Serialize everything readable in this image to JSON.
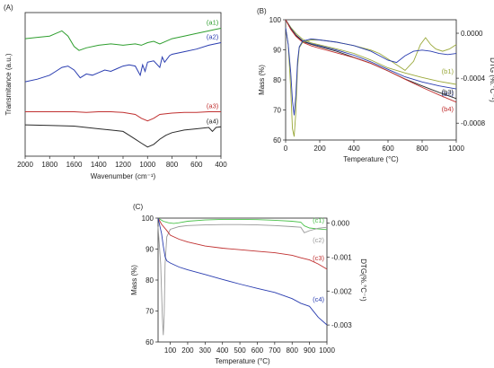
{
  "chart_data": [
    {
      "panel_label": "(A)",
      "type": "line",
      "xlabel": "Wavenumber (cm⁻¹)",
      "ylabel": "Transmitance (a.u.)",
      "xlim": [
        2000,
        400
      ],
      "x_reversed": true,
      "x_ticks": [
        "2000",
        "1800",
        "1600",
        "1400",
        "1200",
        "1000",
        "800",
        "600",
        "400"
      ],
      "y_ticks_shown": false,
      "series": [
        {
          "name": "(a1)",
          "color": "#2e9e2e",
          "x": [
            2000,
            1900,
            1800,
            1750,
            1700,
            1650,
            1600,
            1560,
            1500,
            1400,
            1300,
            1200,
            1100,
            1050,
            1000,
            950,
            900,
            800,
            700,
            600,
            500,
            450,
            400
          ],
          "y": [
            8.0,
            8.1,
            8.2,
            8.4,
            8.6,
            8.2,
            7.4,
            7.1,
            7.3,
            7.5,
            7.6,
            7.5,
            7.6,
            7.5,
            7.7,
            7.8,
            7.6,
            8.0,
            8.2,
            8.4,
            8.6,
            8.7,
            8.8
          ]
        },
        {
          "name": "(a2)",
          "color": "#2a3db0",
          "x": [
            2000,
            1900,
            1800,
            1750,
            1700,
            1650,
            1600,
            1550,
            1500,
            1450,
            1400,
            1350,
            1300,
            1250,
            1200,
            1150,
            1100,
            1060,
            1040,
            1020,
            1000,
            950,
            900,
            880,
            860,
            820,
            800,
            700,
            600,
            500,
            400
          ],
          "y": [
            4.7,
            4.9,
            5.2,
            5.5,
            5.8,
            5.9,
            5.6,
            5.0,
            5.3,
            5.2,
            5.4,
            5.6,
            5.5,
            5.7,
            5.9,
            6.0,
            5.9,
            5.2,
            6.0,
            5.5,
            6.2,
            6.3,
            5.8,
            6.6,
            6.2,
            6.7,
            6.8,
            7.0,
            7.2,
            7.5,
            7.7
          ]
        },
        {
          "name": "(a3)",
          "color": "#c03030",
          "x": [
            2000,
            1800,
            1600,
            1500,
            1400,
            1300,
            1200,
            1100,
            1050,
            1000,
            950,
            900,
            800,
            700,
            600,
            500,
            400
          ],
          "y": [
            2.4,
            2.4,
            2.4,
            2.35,
            2.4,
            2.4,
            2.35,
            2.2,
            1.9,
            1.7,
            1.9,
            2.2,
            2.3,
            2.35,
            2.35,
            2.4,
            2.4
          ]
        },
        {
          "name": "(a4)",
          "color": "#2a2a2a",
          "x": [
            2000,
            1800,
            1600,
            1500,
            1400,
            1300,
            1200,
            1150,
            1100,
            1050,
            1000,
            950,
            900,
            850,
            800,
            700,
            600,
            500,
            470,
            440,
            400
          ],
          "y": [
            1.4,
            1.35,
            1.3,
            1.2,
            1.1,
            1.0,
            0.9,
            0.6,
            0.3,
            0.0,
            -0.3,
            -0.1,
            0.3,
            0.6,
            0.8,
            1.0,
            1.1,
            1.2,
            0.9,
            1.2,
            1.25
          ]
        }
      ]
    },
    {
      "panel_label": "(B)",
      "type": "line",
      "xlabel": "Temperature (°C)",
      "ylabel": "Mass (%)",
      "y2label": "DTG (%.°C⁻¹)",
      "xlim": [
        0,
        1000
      ],
      "ylim": [
        60,
        100
      ],
      "y2lim": [
        -0.00095,
        0.00012
      ],
      "x_ticks": [
        "0",
        "200",
        "400",
        "600",
        "800",
        "1000"
      ],
      "y_ticks": [
        "60",
        "70",
        "80",
        "90",
        "100"
      ],
      "y2_ticks": [
        "0.0000",
        "-0.0004",
        "-0.0008"
      ],
      "y2_tick_values": [
        0.0,
        -0.0004,
        -0.0008
      ],
      "series": [
        {
          "name": "(b1)",
          "color": "#9aa83a",
          "axis": "mass",
          "x": [
            0,
            30,
            60,
            100,
            150,
            200,
            300,
            400,
            500,
            600,
            700,
            800,
            900,
            1000
          ],
          "y": [
            100,
            97.5,
            95.5,
            93.5,
            92.3,
            91.6,
            90.3,
            88.8,
            86.6,
            84,
            82.3,
            80.8,
            79.5,
            78.5
          ]
        },
        {
          "name": "(b2)",
          "color": "#2a3db0",
          "axis": "mass",
          "x": [
            0,
            30,
            60,
            100,
            150,
            200,
            300,
            400,
            500,
            600,
            700,
            800,
            900,
            1000
          ],
          "y": [
            100,
            97.2,
            95,
            93,
            92,
            91.3,
            89.9,
            88.2,
            86,
            83.5,
            81,
            79.3,
            78,
            77
          ]
        },
        {
          "name": "(b3)",
          "color": "#2a2a2a",
          "axis": "mass",
          "x": [
            0,
            30,
            60,
            100,
            150,
            200,
            300,
            400,
            500,
            600,
            700,
            800,
            900,
            1000
          ],
          "y": [
            100,
            97,
            94.8,
            92.8,
            91.8,
            91,
            89.5,
            87.5,
            85.5,
            83,
            80.3,
            78,
            75.8,
            73.8
          ]
        },
        {
          "name": "(b4)",
          "color": "#c03030",
          "axis": "mass",
          "x": [
            0,
            30,
            60,
            100,
            150,
            200,
            300,
            400,
            500,
            600,
            700,
            800,
            900,
            1000
          ],
          "y": [
            100,
            96.8,
            94.5,
            92.5,
            91.3,
            90.5,
            89,
            87.4,
            85.5,
            83,
            80.2,
            77.5,
            75,
            72.6
          ]
        },
        {
          "name": "",
          "color": "#9aa83a",
          "axis": "dtg",
          "x": [
            0,
            15,
            30,
            40,
            50,
            60,
            70,
            80,
            100,
            150,
            200,
            300,
            400,
            500,
            550,
            600,
            650,
            700,
            750,
            790,
            820,
            850,
            880,
            920,
            960,
            1000
          ],
          "y": [
            5e-05,
            -0.0001,
            -0.0005,
            -0.00085,
            -0.00092,
            -0.0007,
            -0.0003,
            -0.00013,
            -8e-05,
            -6e-05,
            -6e-05,
            -8e-05,
            -0.00011,
            -0.00015,
            -0.00018,
            -0.00023,
            -0.00028,
            -0.00033,
            -0.00025,
            -0.0001,
            -4e-05,
            -0.0001,
            -0.00014,
            -0.00016,
            -0.00014,
            -0.0001
          ]
        },
        {
          "name": "",
          "color": "#2a3db0",
          "axis": "dtg",
          "x": [
            0,
            15,
            30,
            40,
            50,
            60,
            70,
            80,
            100,
            150,
            200,
            300,
            400,
            500,
            600,
            650,
            700,
            750,
            800,
            850,
            900,
            950,
            1000
          ],
          "y": [
            5e-05,
            -0.0001,
            -0.00035,
            -0.0006,
            -0.00073,
            -0.00055,
            -0.00025,
            -0.00012,
            -7e-05,
            -5e-05,
            -6e-05,
            -8e-05,
            -0.00011,
            -0.00016,
            -0.00024,
            -0.00026,
            -0.0002,
            -0.00016,
            -0.00015,
            -0.00016,
            -0.00018,
            -0.00019,
            -0.00018
          ]
        }
      ]
    },
    {
      "panel_label": "(C)",
      "type": "line",
      "xlabel": "Temperature (°C)",
      "ylabel": "Mass (%)",
      "y2label": "DTG(%.°C⁻¹)",
      "xlim": [
        30,
        1000
      ],
      "ylim": [
        60,
        100
      ],
      "y2lim": [
        -0.0035,
        0.00015
      ],
      "x_ticks": [
        "100",
        "200",
        "300",
        "400",
        "500",
        "600",
        "700",
        "800",
        "900",
        "1000"
      ],
      "y_ticks": [
        "60",
        "70",
        "80",
        "90",
        "100"
      ],
      "y2_ticks": [
        "0.000",
        "-0.001",
        "-0.002",
        "-0.003"
      ],
      "y2_tick_values": [
        0.0,
        -0.001,
        -0.002,
        -0.003
      ],
      "series": [
        {
          "name": "(c1)",
          "color": "#4cc24c",
          "axis": "mass",
          "x": [
            30,
            60,
            90,
            120,
            150,
            200,
            300,
            400,
            500,
            600,
            700,
            800,
            850,
            870,
            900,
            950,
            1000
          ],
          "y": [
            100,
            99,
            98.5,
            98.3,
            98.5,
            99,
            99.4,
            99.6,
            99.6,
            99.5,
            99.3,
            99,
            98.7,
            97.5,
            96.8,
            96.5,
            96.3
          ]
        },
        {
          "name": "(c2)",
          "color": "#999999",
          "axis": "dtg",
          "x": [
            30,
            45,
            55,
            60,
            65,
            70,
            80,
            100,
            150,
            200,
            300,
            400,
            500,
            600,
            700,
            800,
            850,
            870,
            900,
            950,
            1000
          ],
          "y": [
            -0.0001,
            -0.0012,
            -0.0028,
            -0.0033,
            -0.0027,
            -0.0012,
            -0.0004,
            -0.00018,
            -0.0001,
            -7e-05,
            -5e-05,
            -4e-05,
            -4e-05,
            -5e-05,
            -7e-05,
            -0.0001,
            -0.00012,
            -0.00028,
            -0.00022,
            -0.00015,
            -0.00012
          ]
        },
        {
          "name": "(c3)",
          "color": "#c03030",
          "axis": "mass",
          "x": [
            30,
            50,
            80,
            100,
            150,
            200,
            300,
            400,
            500,
            600,
            700,
            800,
            850,
            900,
            950,
            1000
          ],
          "y": [
            100,
            98,
            96,
            94.5,
            93.2,
            92.3,
            91,
            90.3,
            89.8,
            89.3,
            88.8,
            88,
            87.2,
            86.5,
            85.2,
            83.5
          ]
        },
        {
          "name": "(c4)",
          "color": "#2a3db0",
          "axis": "mass",
          "x": [
            30,
            50,
            60,
            70,
            80,
            100,
            150,
            200,
            300,
            400,
            500,
            600,
            700,
            800,
            850,
            900,
            950,
            1000
          ],
          "y": [
            100,
            95,
            91,
            87.5,
            86.2,
            85.5,
            84.2,
            83.3,
            81.8,
            80.2,
            78.7,
            77.3,
            76,
            74,
            72.5,
            71.5,
            68,
            65.5
          ]
        }
      ]
    }
  ]
}
